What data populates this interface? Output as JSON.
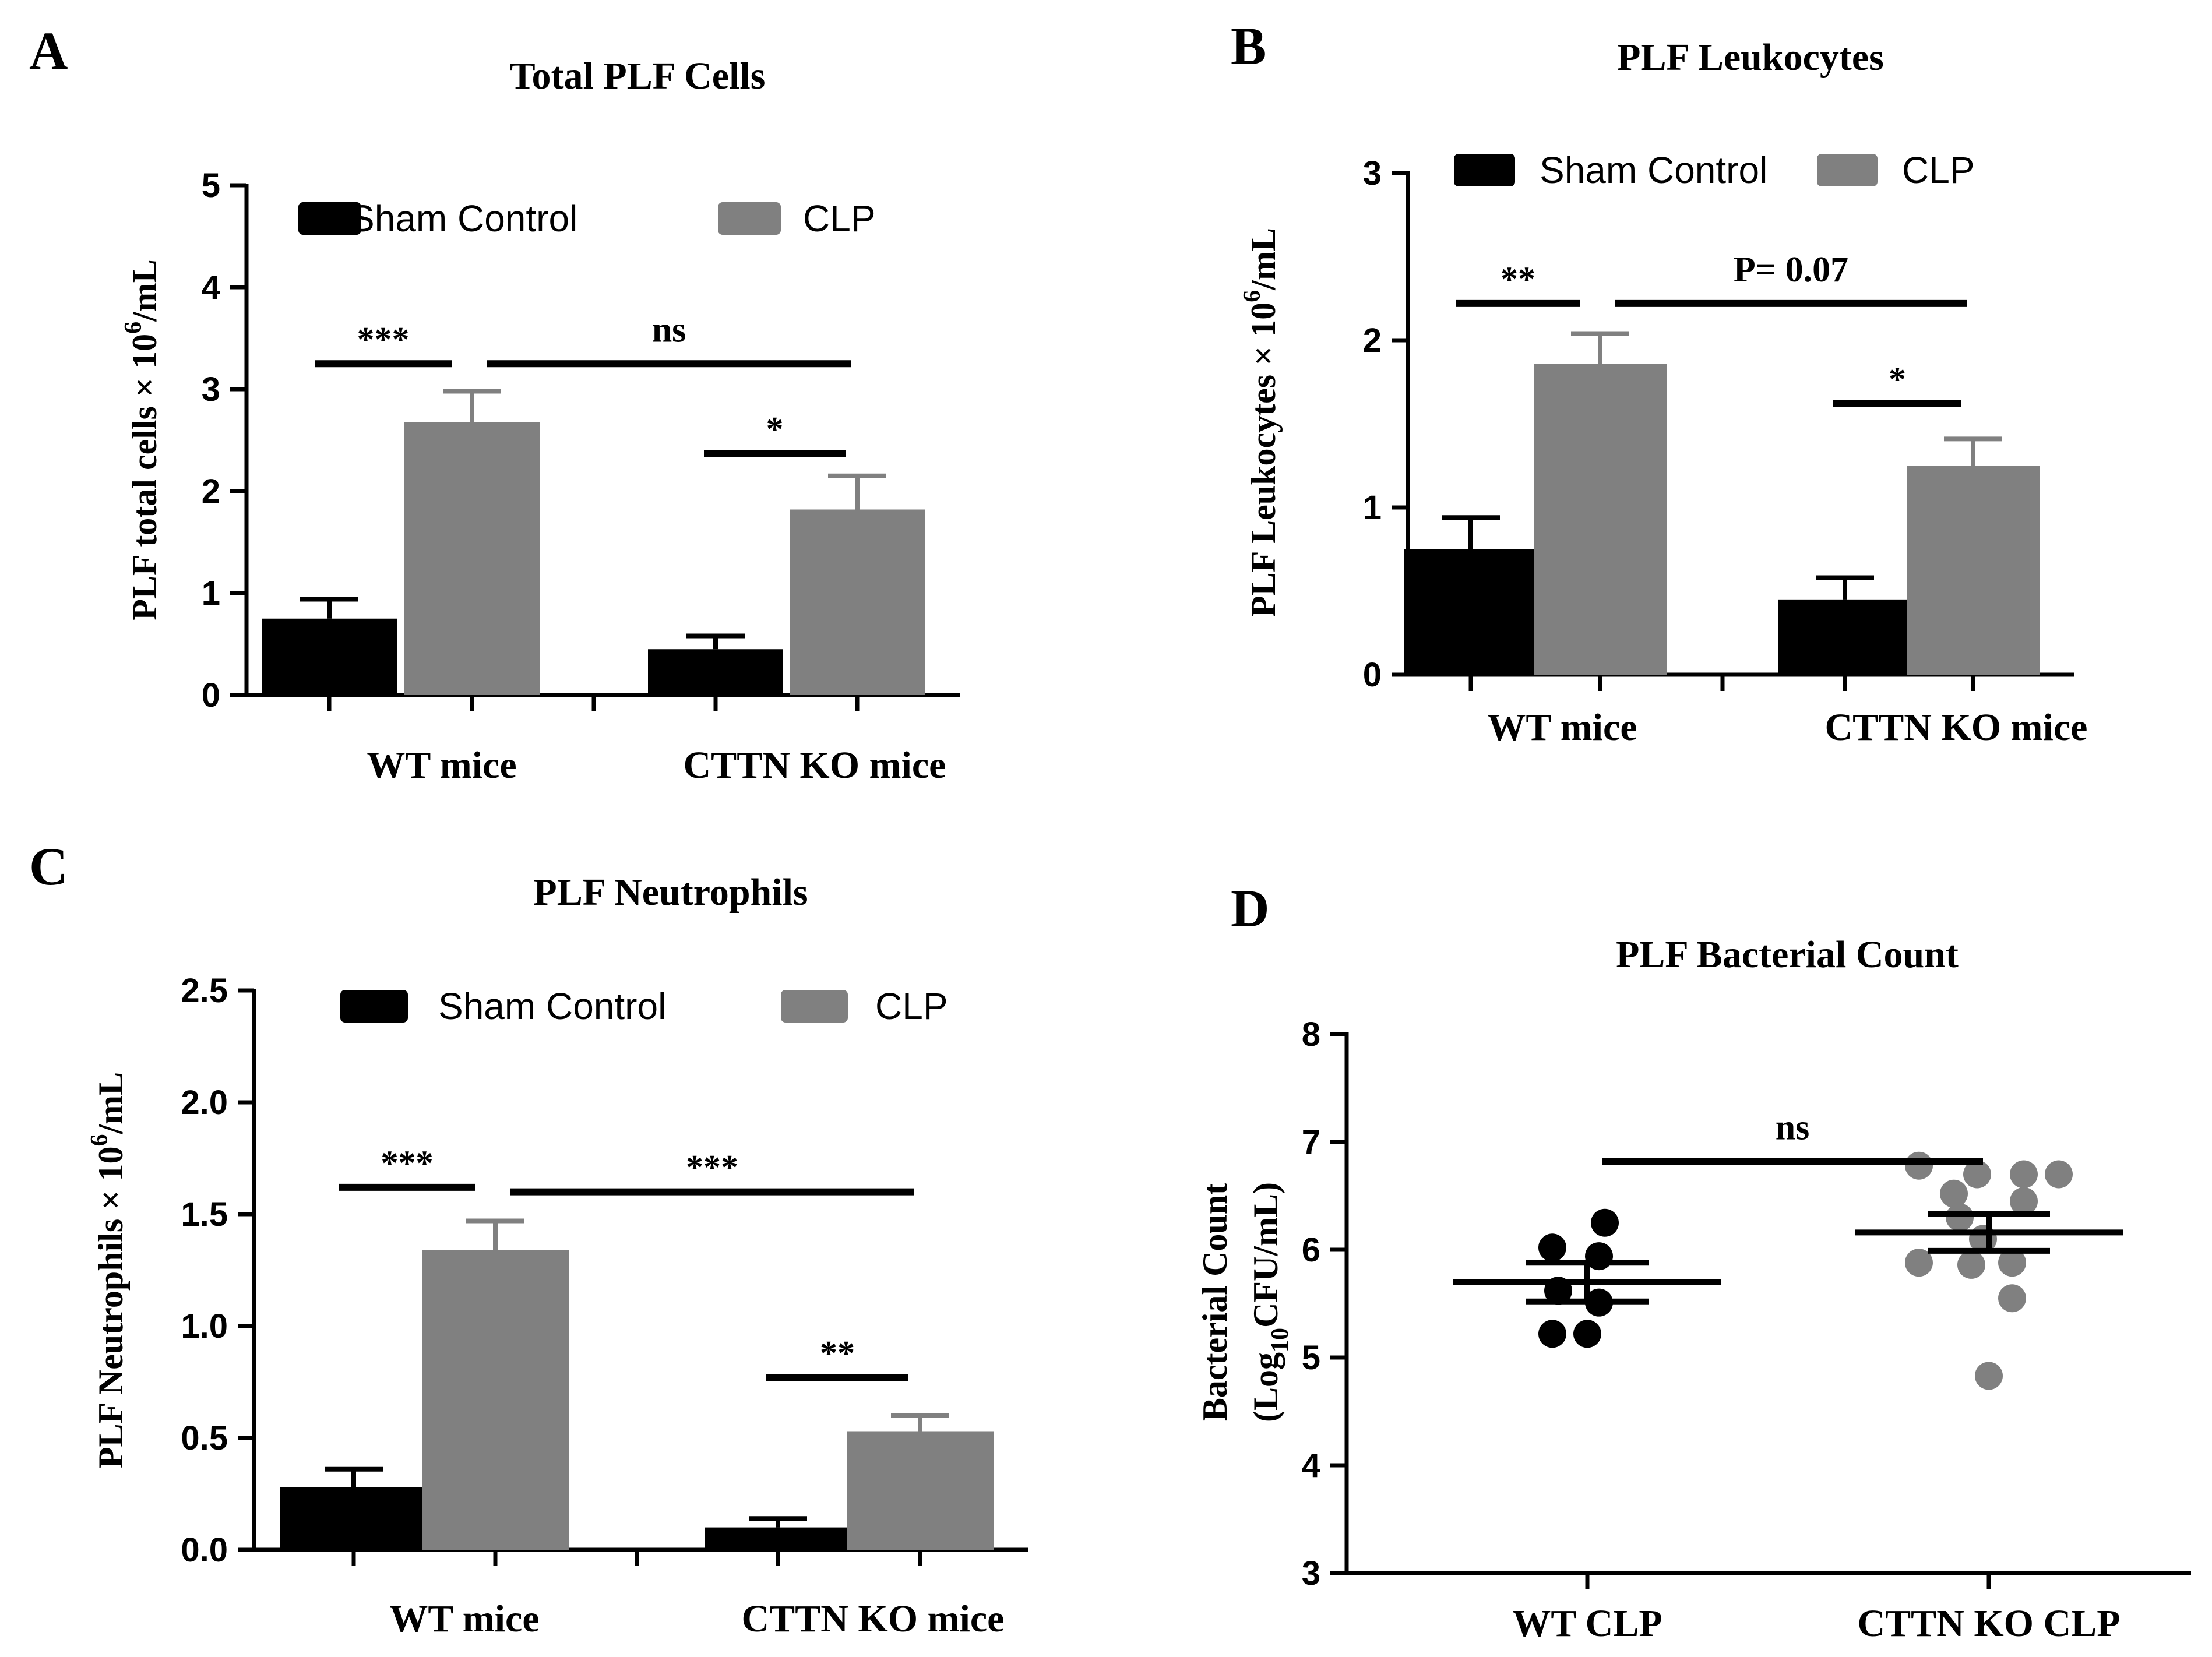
{
  "colors": {
    "sham": "#000000",
    "clp": "#808080",
    "wt_points": "#000000",
    "ko_points": "#808080",
    "axis": "#000000"
  },
  "chart_data": [
    {
      "panel": "A",
      "type": "bar",
      "title": "Total PLF Cells",
      "ylabel": "PLF total cells × 10",
      "ylabel_sup": "6",
      "ylabel_unit": "/mL",
      "ylim": [
        0,
        5
      ],
      "yticks": [
        "0",
        "1",
        "2",
        "3",
        "4",
        "5"
      ],
      "categories": [
        "WT mice",
        "CTTN KO mice"
      ],
      "series": [
        {
          "name": "Sham Control",
          "values": [
            0.75,
            0.45
          ],
          "errors": [
            0.19,
            0.13
          ]
        },
        {
          "name": "CLP",
          "values": [
            2.68,
            1.82
          ],
          "errors": [
            0.3,
            0.33
          ]
        }
      ],
      "annotations": [
        {
          "text": "***",
          "from": [
            0,
            0
          ],
          "to": [
            0,
            1
          ],
          "y": 3.25
        },
        {
          "text": "ns",
          "from": [
            0,
            1
          ],
          "to": [
            1,
            1
          ],
          "y": 3.25
        },
        {
          "text": "*",
          "from": [
            1,
            0
          ],
          "to": [
            1,
            1
          ],
          "y": 2.37
        }
      ],
      "legend": "top"
    },
    {
      "panel": "B",
      "type": "bar",
      "title": "PLF Leukocytes",
      "ylabel": "PLF Leukocytes × 10",
      "ylabel_sup": "6",
      "ylabel_unit": "/mL",
      "ylim": [
        0,
        3
      ],
      "yticks": [
        "0",
        "1",
        "2",
        "3"
      ],
      "categories": [
        "WT mice",
        "CTTN KO mice"
      ],
      "series": [
        {
          "name": "Sham Control",
          "values": [
            0.75,
            0.45
          ],
          "errors": [
            0.19,
            0.13
          ]
        },
        {
          "name": "CLP",
          "values": [
            1.86,
            1.25
          ],
          "errors": [
            0.18,
            0.16
          ]
        }
      ],
      "annotations": [
        {
          "text": "**",
          "from": [
            0,
            0
          ],
          "to": [
            0,
            1
          ],
          "y": 2.22
        },
        {
          "text": "P= 0.07",
          "from": [
            0,
            1
          ],
          "to": [
            1,
            1
          ],
          "y": 2.22
        },
        {
          "text": "*",
          "from": [
            1,
            0
          ],
          "to": [
            1,
            1
          ],
          "y": 1.62
        }
      ],
      "legend": "top"
    },
    {
      "panel": "C",
      "type": "bar",
      "title": "PLF Neutrophils",
      "ylabel": "PLF Neutrophils × 10",
      "ylabel_sup": "6",
      "ylabel_unit": "/mL",
      "ylim": [
        0,
        2.5
      ],
      "yticks": [
        "0.0",
        "0.5",
        "1.0",
        "1.5",
        "2.0",
        "2.5"
      ],
      "categories": [
        "WT mice",
        "CTTN KO mice"
      ],
      "series": [
        {
          "name": "Sham Control",
          "values": [
            0.28,
            0.1
          ],
          "errors": [
            0.08,
            0.04
          ]
        },
        {
          "name": "CLP",
          "values": [
            1.34,
            0.53
          ],
          "errors": [
            0.13,
            0.07
          ]
        }
      ],
      "annotations": [
        {
          "text": "***",
          "from": [
            0,
            0
          ],
          "to": [
            0,
            1
          ],
          "y": 1.62
        },
        {
          "text": "***",
          "from": [
            0,
            1
          ],
          "to": [
            1,
            1
          ],
          "y": 1.6
        },
        {
          "text": "**",
          "from": [
            1,
            0
          ],
          "to": [
            1,
            1
          ],
          "y": 0.77
        }
      ],
      "legend": "top"
    },
    {
      "panel": "D",
      "type": "scatter",
      "title": "PLF Bacterial Count",
      "ylabel_line1": "Bacterial Count",
      "ylabel_line2_pre": "(Log",
      "ylabel_line2_sub": "10",
      "ylabel_line2_post": "CFU/mL)",
      "ylim": [
        3,
        8
      ],
      "yticks": [
        "3",
        "4",
        "5",
        "6",
        "7",
        "8"
      ],
      "categories": [
        "WT CLP",
        "CTTN KO CLP"
      ],
      "groups": [
        {
          "name": "WT CLP",
          "values": [
            6.25,
            6.02,
            5.94,
            5.62,
            5.51,
            5.22,
            5.22
          ],
          "mean": 5.7,
          "sem": 0.18
        },
        {
          "name": "CTTN KO CLP",
          "values": [
            6.78,
            6.7,
            6.7,
            6.7,
            6.52,
            6.45,
            6.3,
            6.1,
            5.88,
            5.88,
            5.86,
            5.55,
            4.83
          ],
          "mean": 6.16,
          "sem": 0.17
        }
      ],
      "annotations": [
        {
          "text": "ns",
          "from": 0,
          "to": 1,
          "y": 6.82
        }
      ]
    }
  ],
  "panel_labels": [
    "A",
    "B",
    "C",
    "D"
  ]
}
